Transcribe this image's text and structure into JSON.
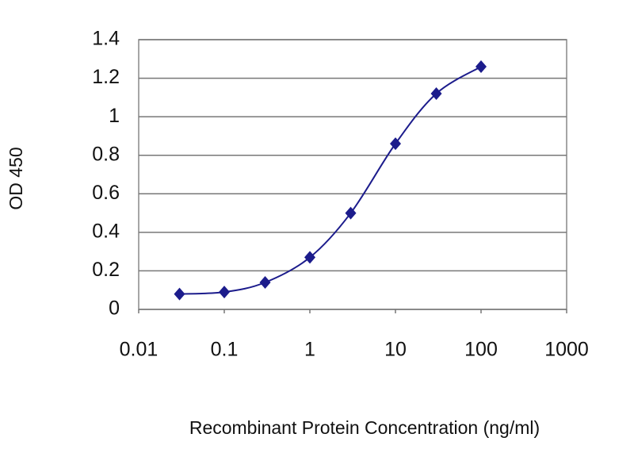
{
  "chart_data": {
    "type": "line",
    "x_label": "Recombinant Protein Concentration (ng/ml)",
    "y_label": "OD 450",
    "x": [
      0.03,
      0.1,
      0.3,
      1,
      3,
      10,
      30,
      100
    ],
    "series": [
      {
        "color": "#1c1c8c",
        "values": [
          0.08,
          0.09,
          0.14,
          0.27,
          0.5,
          0.86,
          1.12,
          1.26
        ]
      }
    ],
    "xlim": [
      0.01,
      1000
    ],
    "xticks": [
      0.01,
      0.1,
      1,
      10,
      100,
      1000
    ],
    "xscale": "log",
    "ylim": [
      0,
      1.4
    ],
    "yticks": [
      0,
      0.2,
      0.4,
      0.6,
      0.8,
      1,
      1.2,
      1.4
    ],
    "grid": true
  }
}
